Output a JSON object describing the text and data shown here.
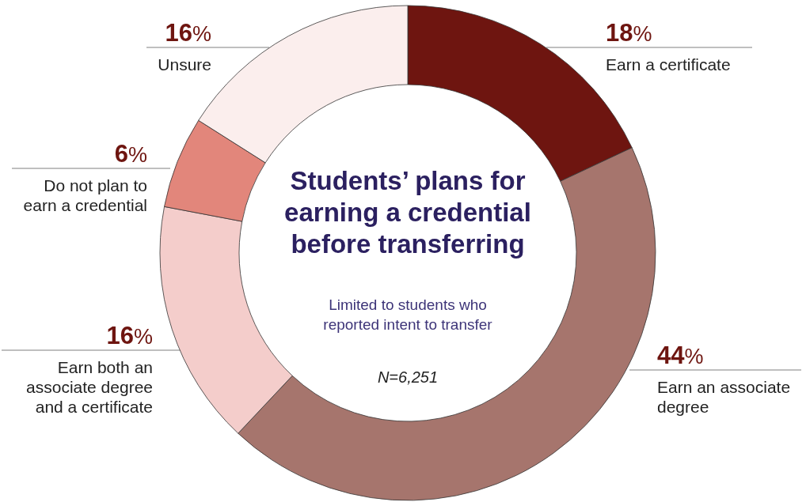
{
  "chart_data": {
    "type": "donut",
    "title": "Students’ plans for earning a credential before transferring",
    "subtitle": "Limited to students who reported intent to transfer",
    "annotations": [
      "N=6,251"
    ],
    "categories": [
      "Earn a certificate",
      "Earn an associate degree",
      "Earn both an associate degree and a certificate",
      "Do not plan to earn a credential",
      "Unsure"
    ],
    "values": [
      18,
      44,
      16,
      6,
      16
    ],
    "value_labels": [
      "18%",
      "44%",
      "16%",
      "6%",
      "16%"
    ],
    "colors": [
      "#6e1510",
      "#a6756d",
      "#f4cdcb",
      "#e2867b",
      "#fbeeed"
    ]
  }
}
